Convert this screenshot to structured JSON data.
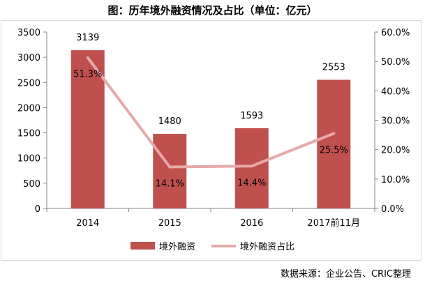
{
  "title": "图：历年境外融资情况及占比（单位：亿元）",
  "source": "数据来源：企业公告、CRIC整理",
  "colors": {
    "bar": "#c0504d",
    "line": "#e6a9a7"
  },
  "chart_data": {
    "type": "bar+line",
    "categories": [
      "2014",
      "2015",
      "2016",
      "2017前11月"
    ],
    "series": [
      {
        "name": "境外融资",
        "type": "bar",
        "axis": "left",
        "values": [
          3139,
          1480,
          1593,
          2553
        ],
        "labels": [
          "3139",
          "1480",
          "1593",
          "2553"
        ]
      },
      {
        "name": "境外融资占比",
        "type": "line",
        "axis": "right",
        "values": [
          51.3,
          14.1,
          14.4,
          25.5
        ],
        "labels": [
          "51.3%",
          "14.1%",
          "14.4%",
          "25.5%"
        ]
      }
    ],
    "left_axis": {
      "min": 0,
      "max": 3500,
      "step": 500,
      "ticks": [
        "0",
        "500",
        "1000",
        "1500",
        "2000",
        "2500",
        "3000",
        "3500"
      ]
    },
    "right_axis": {
      "min": 0,
      "max": 60,
      "step": 10,
      "ticks": [
        "0.0%",
        "10.0%",
        "20.0%",
        "30.0%",
        "40.0%",
        "50.0%",
        "60.0%"
      ]
    },
    "grid": false,
    "legend": "bottom"
  }
}
